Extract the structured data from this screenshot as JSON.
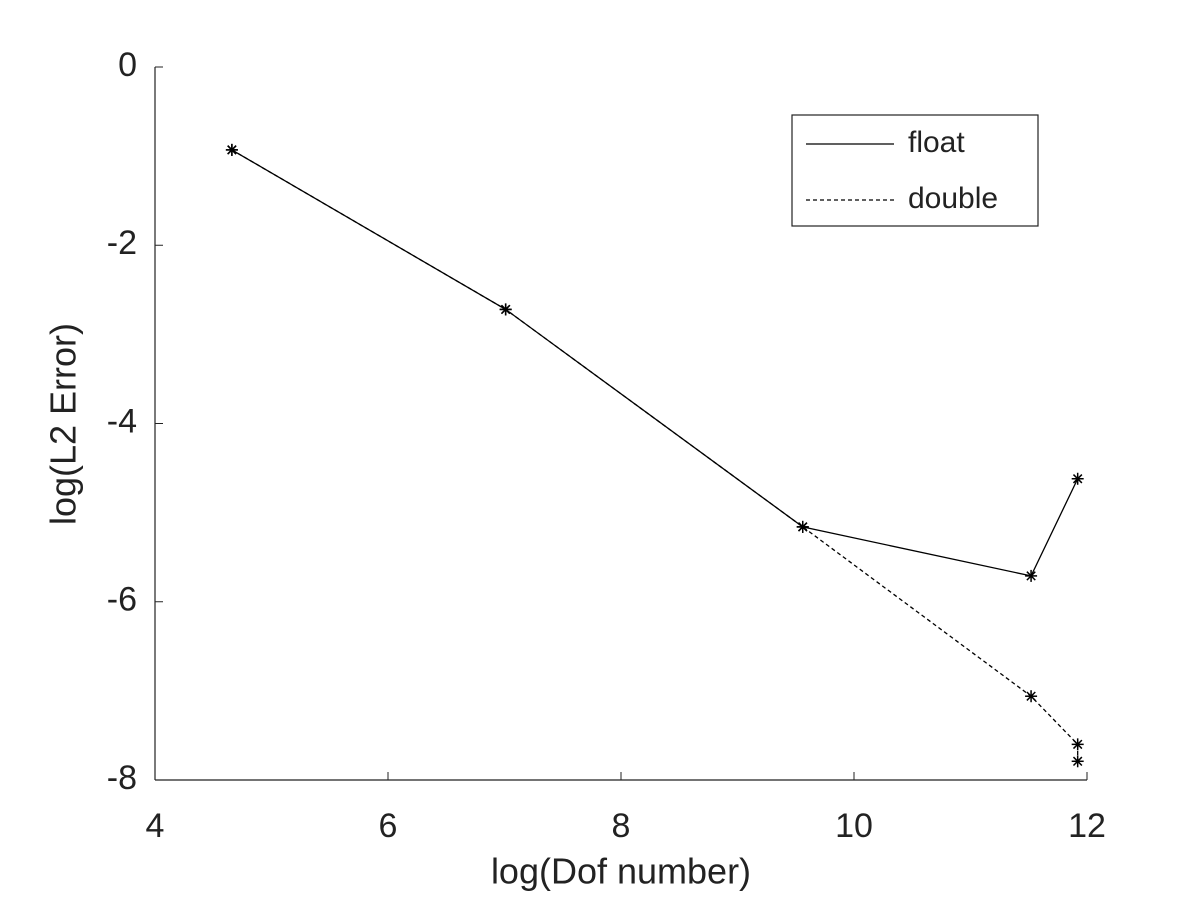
{
  "chart_data": {
    "type": "line",
    "x_label": "log(Dof number)",
    "y_label": "log(L2 Error)",
    "xlim": [
      4,
      12
    ],
    "xticks": [
      4,
      6,
      8,
      10,
      12
    ],
    "ylim": [
      -8,
      0
    ],
    "yticks": [
      -8,
      -6,
      -4,
      -2,
      0
    ],
    "legend": "upper right",
    "grid": false,
    "marker": "*",
    "series": [
      {
        "name": "float",
        "color": "#000000",
        "dash": "solid",
        "x": [
          4.66,
          7.01,
          9.56,
          11.52,
          11.92
        ],
        "values": [
          -0.93,
          -2.72,
          -5.16,
          -5.71,
          -4.62
        ]
      },
      {
        "name": "double",
        "color": "#000000",
        "dash": "dashed",
        "x": [
          4.66,
          7.01,
          9.56,
          11.52,
          11.92,
          11.92
        ],
        "values": [
          -0.93,
          -2.72,
          -5.16,
          -7.06,
          -7.6,
          -7.79
        ]
      }
    ]
  }
}
